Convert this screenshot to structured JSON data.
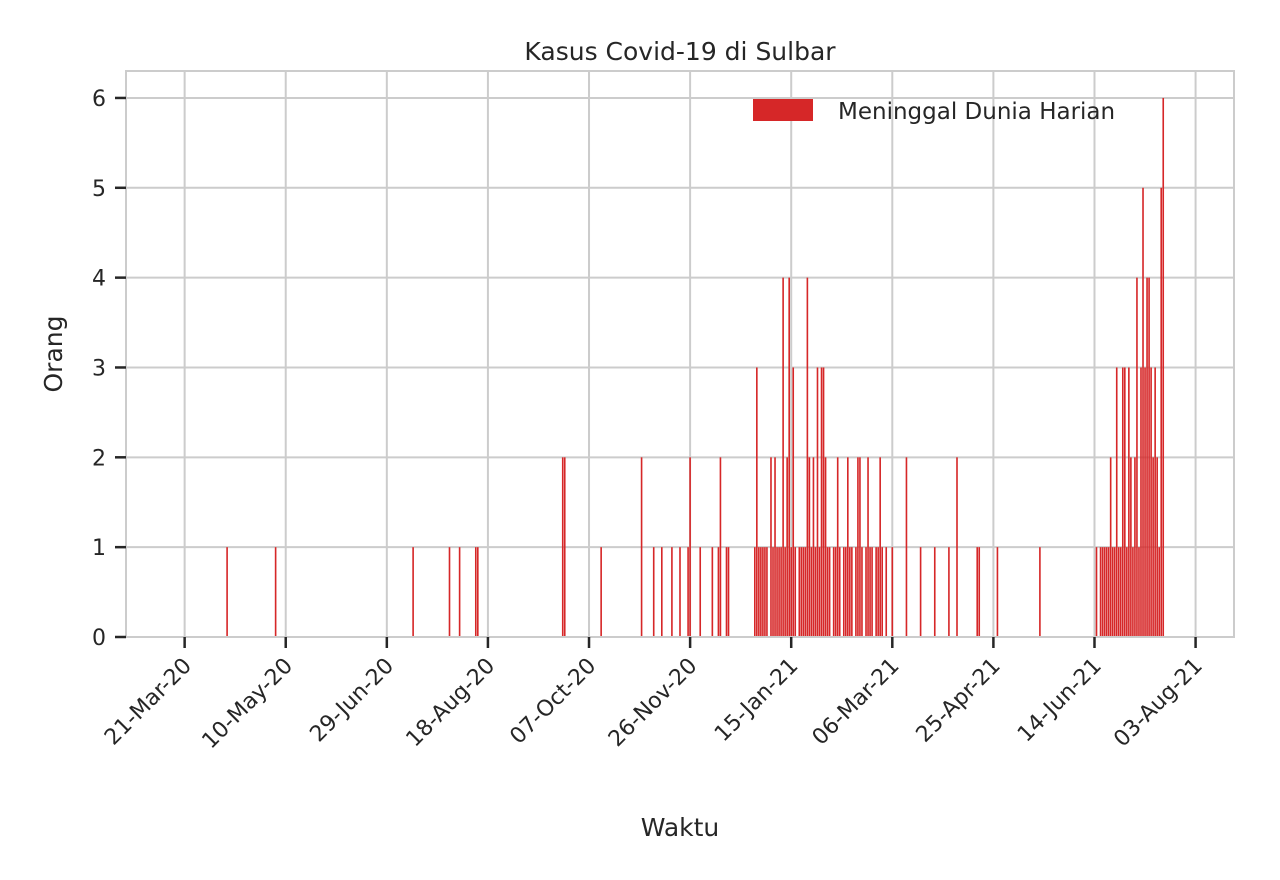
{
  "chart_data": {
    "type": "bar",
    "title": "Kasus Covid-19 di Sulbar",
    "xlabel": "Waktu",
    "ylabel": "Orang",
    "ylim": [
      0,
      6.3
    ],
    "xlim": [
      "2020-02-21",
      "2021-08-22"
    ],
    "y_ticks": [
      0,
      1,
      2,
      3,
      4,
      5,
      6
    ],
    "x_ticks": [
      {
        "date": "2020-03-21",
        "label": "21-Mar-20"
      },
      {
        "date": "2020-05-10",
        "label": "10-May-20"
      },
      {
        "date": "2020-06-29",
        "label": "29-Jun-20"
      },
      {
        "date": "2020-08-18",
        "label": "18-Aug-20"
      },
      {
        "date": "2020-10-07",
        "label": "07-Oct-20"
      },
      {
        "date": "2020-11-26",
        "label": "26-Nov-20"
      },
      {
        "date": "2021-01-15",
        "label": "15-Jan-21"
      },
      {
        "date": "2021-03-06",
        "label": "06-Mar-21"
      },
      {
        "date": "2021-04-25",
        "label": "25-Apr-21"
      },
      {
        "date": "2021-06-14",
        "label": "14-Jun-21"
      },
      {
        "date": "2021-08-03",
        "label": "03-Aug-21"
      }
    ],
    "grid": true,
    "legend_position": "top-right",
    "series": [
      {
        "name": "Meninggal Dunia Harian",
        "color": "#d62728",
        "points": [
          [
            "2020-04-11",
            1
          ],
          [
            "2020-05-05",
            1
          ],
          [
            "2020-07-12",
            1
          ],
          [
            "2020-07-30",
            1
          ],
          [
            "2020-08-04",
            1
          ],
          [
            "2020-08-12",
            1
          ],
          [
            "2020-08-13",
            1
          ],
          [
            "2020-09-24",
            2
          ],
          [
            "2020-09-25",
            2
          ],
          [
            "2020-10-13",
            1
          ],
          [
            "2020-11-02",
            2
          ],
          [
            "2020-11-08",
            1
          ],
          [
            "2020-11-12",
            1
          ],
          [
            "2020-11-17",
            1
          ],
          [
            "2020-11-21",
            1
          ],
          [
            "2020-11-25",
            1
          ],
          [
            "2020-11-26",
            2
          ],
          [
            "2020-12-01",
            1
          ],
          [
            "2020-12-07",
            1
          ],
          [
            "2020-12-10",
            1
          ],
          [
            "2020-12-11",
            2
          ],
          [
            "2020-12-14",
            1
          ],
          [
            "2020-12-15",
            1
          ],
          [
            "2020-12-28",
            1
          ],
          [
            "2020-12-29",
            3
          ],
          [
            "2020-12-30",
            1
          ],
          [
            "2020-12-31",
            1
          ],
          [
            "2021-01-01",
            1
          ],
          [
            "2021-01-02",
            1
          ],
          [
            "2021-01-03",
            1
          ],
          [
            "2021-01-05",
            2
          ],
          [
            "2021-01-06",
            1
          ],
          [
            "2021-01-07",
            2
          ],
          [
            "2021-01-08",
            1
          ],
          [
            "2021-01-09",
            1
          ],
          [
            "2021-01-10",
            1
          ],
          [
            "2021-01-11",
            4
          ],
          [
            "2021-01-12",
            1
          ],
          [
            "2021-01-13",
            2
          ],
          [
            "2021-01-14",
            4
          ],
          [
            "2021-01-15",
            1
          ],
          [
            "2021-01-16",
            3
          ],
          [
            "2021-01-17",
            1
          ],
          [
            "2021-01-19",
            1
          ],
          [
            "2021-01-20",
            1
          ],
          [
            "2021-01-21",
            1
          ],
          [
            "2021-01-22",
            1
          ],
          [
            "2021-01-23",
            4
          ],
          [
            "2021-01-24",
            2
          ],
          [
            "2021-01-25",
            1
          ],
          [
            "2021-01-26",
            2
          ],
          [
            "2021-01-27",
            1
          ],
          [
            "2021-01-28",
            3
          ],
          [
            "2021-01-29",
            1
          ],
          [
            "2021-01-30",
            3
          ],
          [
            "2021-01-31",
            3
          ],
          [
            "2021-02-01",
            2
          ],
          [
            "2021-02-02",
            1
          ],
          [
            "2021-02-03",
            1
          ],
          [
            "2021-02-05",
            1
          ],
          [
            "2021-02-06",
            1
          ],
          [
            "2021-02-07",
            2
          ],
          [
            "2021-02-08",
            1
          ],
          [
            "2021-02-10",
            1
          ],
          [
            "2021-02-11",
            1
          ],
          [
            "2021-02-12",
            2
          ],
          [
            "2021-02-13",
            1
          ],
          [
            "2021-02-14",
            1
          ],
          [
            "2021-02-16",
            1
          ],
          [
            "2021-02-17",
            2
          ],
          [
            "2021-02-18",
            2
          ],
          [
            "2021-02-19",
            1
          ],
          [
            "2021-02-21",
            1
          ],
          [
            "2021-02-22",
            2
          ],
          [
            "2021-02-23",
            1
          ],
          [
            "2021-02-24",
            1
          ],
          [
            "2021-02-26",
            1
          ],
          [
            "2021-02-27",
            1
          ],
          [
            "2021-02-28",
            2
          ],
          [
            "2021-03-01",
            1
          ],
          [
            "2021-03-03",
            1
          ],
          [
            "2021-03-06",
            1
          ],
          [
            "2021-03-13",
            2
          ],
          [
            "2021-03-20",
            1
          ],
          [
            "2021-03-27",
            1
          ],
          [
            "2021-04-03",
            1
          ],
          [
            "2021-04-07",
            2
          ],
          [
            "2021-04-17",
            1
          ],
          [
            "2021-04-18",
            1
          ],
          [
            "2021-04-27",
            1
          ],
          [
            "2021-05-18",
            1
          ],
          [
            "2021-06-15",
            1
          ],
          [
            "2021-06-17",
            1
          ],
          [
            "2021-06-18",
            1
          ],
          [
            "2021-06-19",
            1
          ],
          [
            "2021-06-20",
            1
          ],
          [
            "2021-06-21",
            1
          ],
          [
            "2021-06-22",
            2
          ],
          [
            "2021-06-23",
            1
          ],
          [
            "2021-06-24",
            1
          ],
          [
            "2021-06-25",
            3
          ],
          [
            "2021-06-26",
            1
          ],
          [
            "2021-06-27",
            1
          ],
          [
            "2021-06-28",
            3
          ],
          [
            "2021-06-29",
            3
          ],
          [
            "2021-06-30",
            1
          ],
          [
            "2021-07-01",
            3
          ],
          [
            "2021-07-02",
            2
          ],
          [
            "2021-07-03",
            1
          ],
          [
            "2021-07-04",
            2
          ],
          [
            "2021-07-05",
            4
          ],
          [
            "2021-07-06",
            1
          ],
          [
            "2021-07-07",
            3
          ],
          [
            "2021-07-08",
            5
          ],
          [
            "2021-07-09",
            3
          ],
          [
            "2021-07-10",
            4
          ],
          [
            "2021-07-11",
            4
          ],
          [
            "2021-07-12",
            3
          ],
          [
            "2021-07-13",
            2
          ],
          [
            "2021-07-14",
            3
          ],
          [
            "2021-07-15",
            2
          ],
          [
            "2021-07-16",
            1
          ],
          [
            "2021-07-17",
            5
          ],
          [
            "2021-07-18",
            6
          ]
        ]
      }
    ]
  }
}
